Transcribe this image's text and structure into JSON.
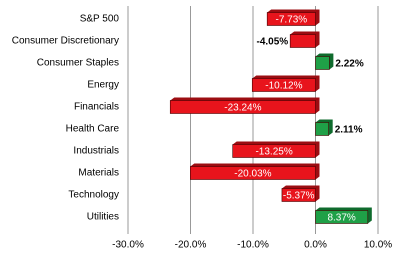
{
  "chart_data": {
    "type": "bar",
    "orientation": "horizontal",
    "categories": [
      "S&P 500",
      "Consumer Discretionary",
      "Consumer Staples",
      "Energy",
      "Financials",
      "Health Care",
      "Industrials",
      "Materials",
      "Technology",
      "Utilities"
    ],
    "values": [
      -7.73,
      -4.05,
      2.22,
      -10.12,
      -23.24,
      2.11,
      -13.25,
      -20.03,
      -5.37,
      8.37
    ],
    "value_labels": [
      "-7.73%",
      "-4.05%",
      "2.22%",
      "-10.12%",
      "-23.24%",
      "2.11%",
      "-13.25%",
      "-20.03%",
      "-5.37%",
      "8.37%"
    ],
    "negative_color": "#e8141c",
    "positive_color": "#1fa047",
    "xlim": [
      -30,
      10
    ],
    "xticks": [
      {
        "value": -30,
        "label": "-30.0%"
      },
      {
        "value": -20,
        "label": "-20.0%"
      },
      {
        "value": -10,
        "label": "-10.0%"
      },
      {
        "value": 0,
        "label": "0.0%"
      },
      {
        "value": 10,
        "label": "10.0%"
      }
    ],
    "grid": true
  }
}
